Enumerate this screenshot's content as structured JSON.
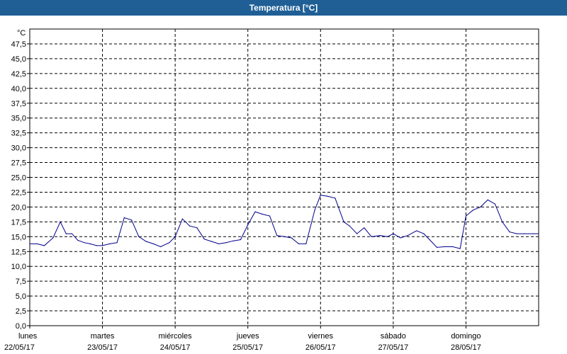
{
  "window": {
    "title": "Temperatura [°C]"
  },
  "chart_data": {
    "type": "line",
    "title": "Temperatura [°C]",
    "ylabel": "°C",
    "ylim": [
      0,
      50
    ],
    "yticks": [
      "0,0",
      "2,5",
      "5,0",
      "7,5",
      "10,0",
      "12,5",
      "15,0",
      "17,5",
      "20,0",
      "22,5",
      "25,0",
      "27,5",
      "30,0",
      "32,5",
      "35,0",
      "37,5",
      "40,0",
      "42,5",
      "45,0",
      "47,5"
    ],
    "grid": true,
    "x_days": [
      {
        "day": "lunes",
        "date": "22/05/17"
      },
      {
        "day": "martes",
        "date": "23/05/17"
      },
      {
        "day": "miércoles",
        "date": "24/05/17"
      },
      {
        "day": "jueves",
        "date": "25/05/17"
      },
      {
        "day": "viernes",
        "date": "26/05/17"
      },
      {
        "day": "sábado",
        "date": "27/05/17"
      },
      {
        "day": "domingo",
        "date": "28/05/17"
      }
    ],
    "series": [
      {
        "color": "#00008b",
        "x_days": [
          0.0,
          0.1,
          0.2,
          0.32,
          0.42,
          0.5,
          0.58,
          0.66,
          0.75,
          0.83,
          0.92,
          1.0,
          1.1,
          1.2,
          1.3,
          1.4,
          1.5,
          1.6,
          1.7,
          1.8,
          1.92,
          2.0,
          2.1,
          2.2,
          2.3,
          2.4,
          2.5,
          2.6,
          2.7,
          2.8,
          2.9,
          3.0,
          3.1,
          3.2,
          3.3,
          3.4,
          3.5,
          3.6,
          3.7,
          3.8,
          3.92,
          4.0,
          4.1,
          4.2,
          4.32,
          4.4,
          4.5,
          4.6,
          4.7,
          4.82,
          4.92,
          5.0,
          5.1,
          5.2,
          5.32,
          5.42,
          5.5,
          5.6,
          5.7,
          5.82,
          5.92,
          6.0,
          6.1,
          6.2,
          6.3,
          6.4,
          6.5,
          6.6,
          6.7,
          6.8,
          6.92,
          7.0
        ],
        "y": [
          13.8,
          13.8,
          13.5,
          14.8,
          17.5,
          15.5,
          15.5,
          14.4,
          14.0,
          13.8,
          13.5,
          13.5,
          13.8,
          14.0,
          18.2,
          17.8,
          15.0,
          14.2,
          13.8,
          13.3,
          14.0,
          15.0,
          18.0,
          16.8,
          16.5,
          14.6,
          14.2,
          13.8,
          14.0,
          14.3,
          14.5,
          17.0,
          19.2,
          18.8,
          18.5,
          15.2,
          15.0,
          14.8,
          13.8,
          13.8,
          19.5,
          22.0,
          21.8,
          21.5,
          17.5,
          16.8,
          15.5,
          16.5,
          15.0,
          15.2,
          15.0,
          15.5,
          14.8,
          15.2,
          16.0,
          15.5,
          14.5,
          13.2,
          13.3,
          13.3,
          13.0,
          18.5,
          19.5,
          20.0,
          21.2,
          20.5,
          17.5,
          15.8,
          15.5,
          15.5,
          15.5,
          15.5
        ]
      }
    ]
  }
}
